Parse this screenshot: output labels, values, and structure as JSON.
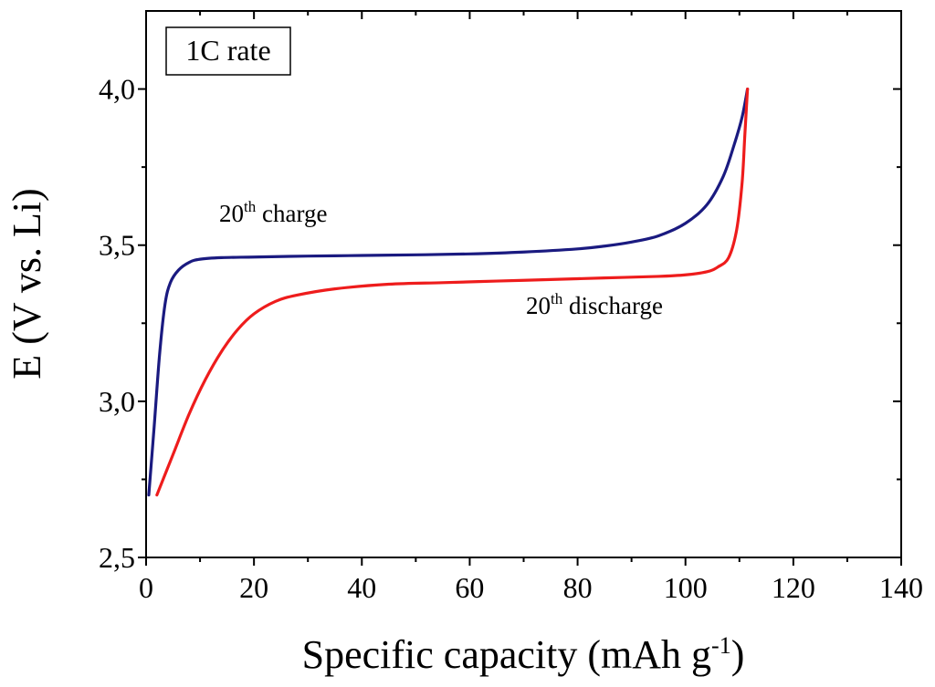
{
  "chart_data": {
    "type": "line",
    "title": "",
    "xlabel": "Specific capacity (mAh g",
    "xlabel_sup": "-1",
    "xlabel_close": ")",
    "ylabel": "E (V vs. Li)",
    "xlim": [
      0,
      140
    ],
    "ylim": [
      2.5,
      4.25
    ],
    "x_ticks": [
      0,
      20,
      40,
      60,
      80,
      100,
      120,
      140
    ],
    "x_tick_labels": [
      "0",
      "20",
      "40",
      "60",
      "80",
      "100",
      "120",
      "140"
    ],
    "y_ticks": [
      2.5,
      3.0,
      3.5,
      4.0
    ],
    "y_tick_labels": [
      "2,5",
      "3,0",
      "3,5",
      "4,0"
    ],
    "grid": false,
    "inset_label": "1C rate",
    "series": [
      {
        "name": "20th charge",
        "color": "#1a1a80",
        "x": [
          0.5,
          1.5,
          2.5,
          3.5,
          4.5,
          6,
          8,
          10,
          14,
          20,
          30,
          40,
          50,
          60,
          70,
          80,
          85,
          90,
          95,
          100,
          104,
          107,
          109,
          110.5,
          111.5
        ],
        "y": [
          2.7,
          2.92,
          3.15,
          3.31,
          3.38,
          3.42,
          3.445,
          3.455,
          3.46,
          3.462,
          3.465,
          3.467,
          3.469,
          3.472,
          3.478,
          3.488,
          3.497,
          3.51,
          3.53,
          3.57,
          3.63,
          3.72,
          3.82,
          3.91,
          4.0
        ]
      },
      {
        "name": "20th discharge",
        "color": "#ee1c1c",
        "x": [
          2,
          5,
          8,
          11,
          14,
          17,
          20,
          24,
          28,
          35,
          45,
          55,
          65,
          75,
          85,
          95,
          100,
          104,
          106,
          108,
          109.5,
          110.5,
          111,
          111.5
        ],
        "y": [
          2.7,
          2.83,
          2.96,
          3.07,
          3.16,
          3.23,
          3.28,
          3.32,
          3.34,
          3.36,
          3.375,
          3.38,
          3.385,
          3.39,
          3.395,
          3.4,
          3.405,
          3.415,
          3.43,
          3.46,
          3.55,
          3.7,
          3.85,
          4.0
        ]
      }
    ],
    "annotations": [
      {
        "base": "20",
        "sup": "th",
        "text": " charge"
      },
      {
        "base": "20",
        "sup": "th",
        "text": " discharge"
      }
    ]
  }
}
